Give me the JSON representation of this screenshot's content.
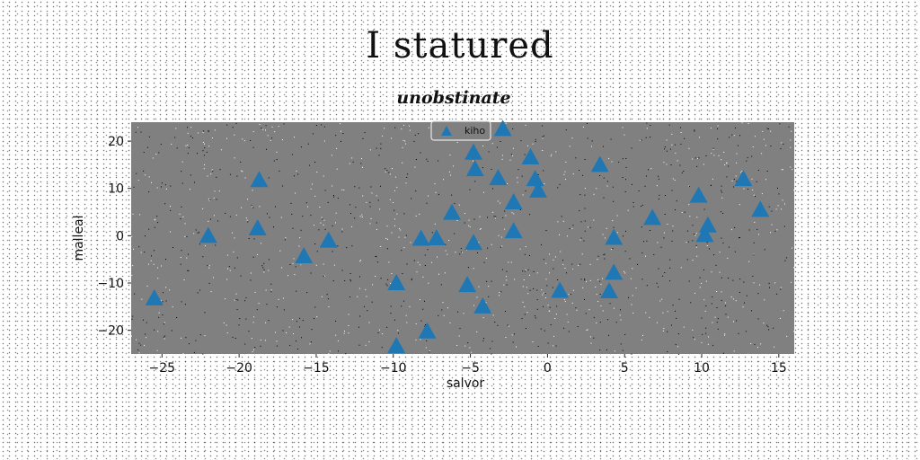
{
  "suptitle": "I statured",
  "chart_data": {
    "type": "scatter",
    "title": "unobstinate",
    "xlabel": "salvor",
    "ylabel": "malleal",
    "xlim": [
      -27,
      16
    ],
    "ylim": [
      -25,
      24
    ],
    "xticks": [
      -25,
      -20,
      -15,
      -10,
      -5,
      0,
      5,
      10,
      15
    ],
    "yticks": [
      -20,
      -10,
      0,
      10,
      20
    ],
    "xtick_labels": [
      "−25",
      "−20",
      "−15",
      "−10",
      "−5",
      "0",
      "5",
      "10",
      "15"
    ],
    "ytick_labels": [
      "−20",
      "−10",
      "0",
      "10",
      "20"
    ],
    "grid": false,
    "legend_position": "top-center",
    "plot_background": "#808080",
    "marker": "triangle",
    "series": [
      {
        "name": "kiho",
        "color": "#1f77b4",
        "points": [
          [
            -25.5,
            -13.2
          ],
          [
            -22,
            0
          ],
          [
            -18.7,
            11.8
          ],
          [
            -18.8,
            1.6
          ],
          [
            -15.8,
            -4.3
          ],
          [
            -14.2,
            -1
          ],
          [
            -9.8,
            -10
          ],
          [
            -9.8,
            -23.3
          ],
          [
            -8.2,
            -0.6
          ],
          [
            -7.8,
            -20.2
          ],
          [
            -7.2,
            -0.5
          ],
          [
            -6.2,
            4.9
          ],
          [
            -5.2,
            -10.4
          ],
          [
            -4.8,
            -1.5
          ],
          [
            -4.8,
            17.6
          ],
          [
            -4.7,
            14.1
          ],
          [
            -4.2,
            -14.9
          ],
          [
            -3.2,
            12.2
          ],
          [
            -2.9,
            22.6
          ],
          [
            -2.2,
            7.1
          ],
          [
            -2.2,
            1
          ],
          [
            -1.1,
            16.6
          ],
          [
            -0.8,
            12
          ],
          [
            -0.6,
            9.6
          ],
          [
            0.8,
            -11.6
          ],
          [
            3.4,
            15
          ],
          [
            4,
            -11.7
          ],
          [
            4.3,
            -7.8
          ],
          [
            4.3,
            -0.4
          ],
          [
            6.8,
            3.8
          ],
          [
            9.8,
            8.5
          ],
          [
            10.2,
            0.2
          ],
          [
            10.4,
            2.2
          ],
          [
            12.7,
            12
          ],
          [
            13.8,
            5.5
          ]
        ]
      }
    ]
  }
}
